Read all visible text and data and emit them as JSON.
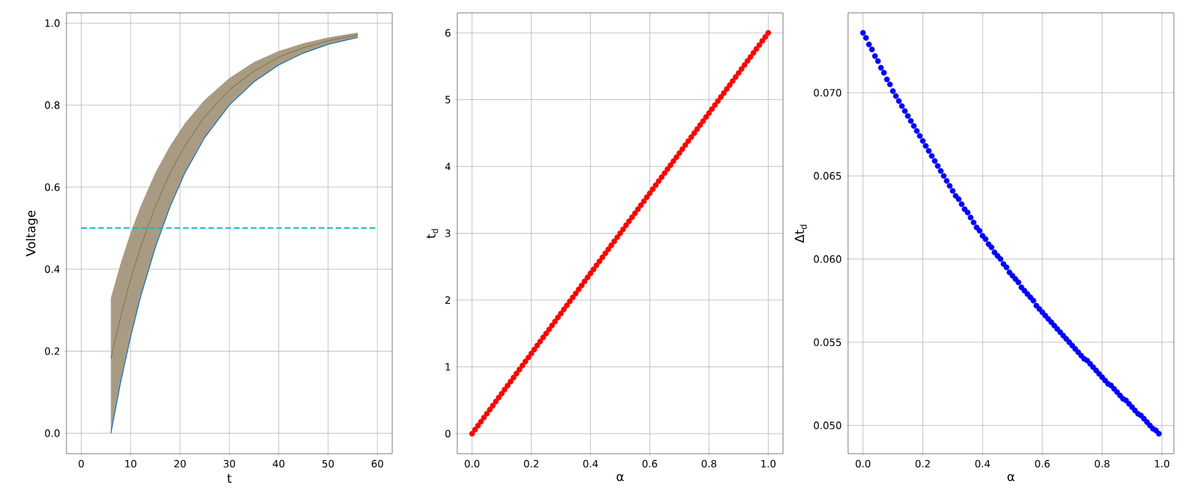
{
  "chart_data": [
    {
      "type": "line",
      "xlabel": "t",
      "ylabel": "Voltage",
      "x": [
        6,
        8,
        10,
        12,
        15,
        18,
        21,
        25,
        30,
        35,
        40,
        45,
        50,
        56
      ],
      "xlim": [
        -3,
        63
      ],
      "ylim": [
        -0.05,
        1.025
      ],
      "xticks": [
        0,
        10,
        20,
        30,
        40,
        50,
        60
      ],
      "yticks": [
        {
          "value": 0,
          "label": "0.0"
        },
        {
          "value": 0.2,
          "label": "0.2"
        },
        {
          "value": 0.4,
          "label": "0.4"
        },
        {
          "value": 0.6,
          "label": "0.6"
        },
        {
          "value": 0.8,
          "label": "0.8"
        },
        {
          "value": 1,
          "label": "1.0"
        }
      ],
      "grid": true,
      "series": [
        {
          "color": "#8c7a5a",
          "values": [
            0.182,
            0.285,
            0.375,
            0.453,
            0.553,
            0.635,
            0.701,
            0.772,
            0.837,
            0.883,
            0.917,
            0.94,
            0.957,
            0.971
          ],
          "lower": [
            0,
            0.126,
            0.235,
            0.332,
            0.453,
            0.553,
            0.635,
            0.721,
            0.8,
            0.857,
            0.898,
            0.927,
            0.948,
            0.965
          ],
          "upper": [
            0.33,
            0.415,
            0.489,
            0.553,
            0.635,
            0.701,
            0.756,
            0.813,
            0.866,
            0.905,
            0.932,
            0.951,
            0.965,
            0.977
          ]
        },
        {
          "color": "#1f77b4",
          "values": [
            0,
            0.126,
            0.235,
            0.332,
            0.453,
            0.553,
            0.635,
            0.721,
            0.8,
            0.857,
            0.898,
            0.927,
            0.948,
            0.965
          ]
        },
        {
          "color": "#00bfbf",
          "line_style": "dashed",
          "x": [
            0,
            60
          ],
          "values": [
            0.5,
            0.5
          ]
        }
      ]
    },
    {
      "type": "scatter",
      "xlabel": "α",
      "ylabel": "t$_{d}$",
      "marker": "circle",
      "grid": true,
      "xlim": [
        -0.05,
        1.05
      ],
      "ylim": [
        -0.3,
        6.3
      ],
      "xticks": [
        {
          "value": 0,
          "label": "0.0"
        },
        {
          "value": 0.2,
          "label": "0.2"
        },
        {
          "value": 0.4,
          "label": "0.4"
        },
        {
          "value": 0.6,
          "label": "0.6"
        },
        {
          "value": 0.8,
          "label": "0.8"
        },
        {
          "value": 1,
          "label": "1.0"
        }
      ],
      "yticks": [
        0,
        1,
        2,
        3,
        4,
        5,
        6
      ],
      "x": [
        0,
        0.01,
        0.02,
        0.03,
        0.04,
        0.05,
        0.06,
        0.07,
        0.08,
        0.09,
        0.1,
        0.11,
        0.12,
        0.13,
        0.14,
        0.15,
        0.16,
        0.17,
        0.18,
        0.19,
        0.2,
        0.21,
        0.22,
        0.23,
        0.24,
        0.25,
        0.26,
        0.27,
        0.28,
        0.29,
        0.3,
        0.31,
        0.32,
        0.33,
        0.34,
        0.35,
        0.36,
        0.37,
        0.38,
        0.39,
        0.4,
        0.41,
        0.42,
        0.43,
        0.44,
        0.45,
        0.46,
        0.47,
        0.48,
        0.49,
        0.5,
        0.51,
        0.52,
        0.53,
        0.54,
        0.55,
        0.56,
        0.57,
        0.58,
        0.59,
        0.6,
        0.61,
        0.62,
        0.63,
        0.64,
        0.65,
        0.66,
        0.67,
        0.68,
        0.69,
        0.7,
        0.71,
        0.72,
        0.73,
        0.74,
        0.75,
        0.76,
        0.77,
        0.78,
        0.79,
        0.8,
        0.81,
        0.82,
        0.83,
        0.84,
        0.85,
        0.86,
        0.87,
        0.88,
        0.89,
        0.9,
        0.91,
        0.92,
        0.93,
        0.94,
        0.95,
        0.96,
        0.97,
        0.98,
        0.99,
        1
      ],
      "series": [
        {
          "color": "#ff0000",
          "values": [
            0,
            0.06,
            0.12,
            0.18,
            0.24,
            0.3,
            0.36,
            0.42,
            0.48,
            0.54,
            0.6,
            0.66,
            0.72,
            0.78,
            0.84,
            0.9,
            0.96,
            1.02,
            1.08,
            1.14,
            1.2,
            1.26,
            1.32,
            1.38,
            1.44,
            1.5,
            1.56,
            1.62,
            1.68,
            1.74,
            1.8,
            1.86,
            1.92,
            1.98,
            2.04,
            2.1,
            2.16,
            2.22,
            2.28,
            2.34,
            2.4,
            2.46,
            2.52,
            2.58,
            2.64,
            2.7,
            2.76,
            2.82,
            2.88,
            2.94,
            3,
            3.06,
            3.12,
            3.18,
            3.24,
            3.3,
            3.36,
            3.42,
            3.48,
            3.54,
            3.6,
            3.66,
            3.72,
            3.78,
            3.84,
            3.9,
            3.96,
            4.02,
            4.08,
            4.14,
            4.2,
            4.26,
            4.32,
            4.38,
            4.44,
            4.5,
            4.56,
            4.62,
            4.68,
            4.74,
            4.8,
            4.86,
            4.92,
            4.98,
            5.04,
            5.1,
            5.16,
            5.22,
            5.28,
            5.34,
            5.4,
            5.46,
            5.52,
            5.58,
            5.64,
            5.7,
            5.76,
            5.82,
            5.88,
            5.94,
            6
          ]
        }
      ]
    },
    {
      "type": "scatter",
      "xlabel": "α",
      "ylabel": "Δt$_{d}$",
      "marker": "circle",
      "grid": true,
      "xlim": [
        -0.05,
        1.04
      ],
      "ylim": [
        0.0483,
        0.0748
      ],
      "xticks": [
        {
          "value": 0,
          "label": "0.0"
        },
        {
          "value": 0.2,
          "label": "0.2"
        },
        {
          "value": 0.4,
          "label": "0.4"
        },
        {
          "value": 0.6,
          "label": "0.6"
        },
        {
          "value": 0.8,
          "label": "0.8"
        },
        {
          "value": 1,
          "label": "1.0"
        }
      ],
      "yticks": [
        {
          "value": 0.05,
          "label": "0.050"
        },
        {
          "value": 0.055,
          "label": "0.055"
        },
        {
          "value": 0.06,
          "label": "0.060"
        },
        {
          "value": 0.065,
          "label": "0.065"
        },
        {
          "value": 0.07,
          "label": "0.070"
        }
      ],
      "x": [
        0,
        0.01,
        0.02,
        0.03,
        0.04,
        0.05,
        0.06,
        0.07,
        0.08,
        0.09,
        0.1,
        0.11,
        0.12,
        0.13,
        0.14,
        0.15,
        0.16,
        0.17,
        0.18,
        0.19,
        0.2,
        0.21,
        0.22,
        0.23,
        0.24,
        0.25,
        0.26,
        0.27,
        0.28,
        0.29,
        0.3,
        0.31,
        0.32,
        0.33,
        0.34,
        0.35,
        0.36,
        0.37,
        0.38,
        0.39,
        0.4,
        0.41,
        0.42,
        0.43,
        0.44,
        0.45,
        0.46,
        0.47,
        0.48,
        0.49,
        0.5,
        0.51,
        0.52,
        0.53,
        0.54,
        0.55,
        0.56,
        0.57,
        0.58,
        0.59,
        0.6,
        0.61,
        0.62,
        0.63,
        0.64,
        0.65,
        0.66,
        0.67,
        0.68,
        0.69,
        0.7,
        0.71,
        0.72,
        0.73,
        0.74,
        0.75,
        0.76,
        0.77,
        0.78,
        0.79,
        0.8,
        0.81,
        0.82,
        0.83,
        0.84,
        0.85,
        0.86,
        0.87,
        0.88,
        0.89,
        0.9,
        0.91,
        0.92,
        0.93,
        0.94,
        0.95,
        0.96,
        0.97,
        0.98,
        0.99
      ],
      "series": [
        {
          "color": "#0000ff",
          "values": [
            0.0736,
            0.0733,
            0.0729,
            0.0726,
            0.0722,
            0.0719,
            0.0715,
            0.0712,
            0.0708,
            0.0705,
            0.0701,
            0.0698,
            0.0695,
            0.0692,
            0.0689,
            0.0686,
            0.0683,
            0.068,
            0.0677,
            0.0674,
            0.0671,
            0.0668,
            0.0665,
            0.0662,
            0.0659,
            0.0656,
            0.0653,
            0.065,
            0.0647,
            0.0644,
            0.0641,
            0.0638,
            0.0636,
            0.0633,
            0.063,
            0.0628,
            0.0625,
            0.0622,
            0.0619,
            0.0617,
            0.0614,
            0.0612,
            0.0609,
            0.0607,
            0.0604,
            0.0602,
            0.06,
            0.0597,
            0.0595,
            0.0592,
            0.059,
            0.0588,
            0.0586,
            0.0583,
            0.0581,
            0.0579,
            0.0577,
            0.0575,
            0.0572,
            0.057,
            0.0568,
            0.0566,
            0.0564,
            0.0562,
            0.056,
            0.0558,
            0.0556,
            0.0554,
            0.0552,
            0.055,
            0.0548,
            0.0546,
            0.0544,
            0.0542,
            0.054,
            0.0539,
            0.0537,
            0.0535,
            0.0533,
            0.0531,
            0.0529,
            0.0527,
            0.0525,
            0.0524,
            0.0522,
            0.052,
            0.0518,
            0.0516,
            0.0515,
            0.0513,
            0.0511,
            0.0509,
            0.0507,
            0.0506,
            0.0504,
            0.0502,
            0.05,
            0.0498,
            0.0497,
            0.0495
          ]
        }
      ]
    }
  ]
}
